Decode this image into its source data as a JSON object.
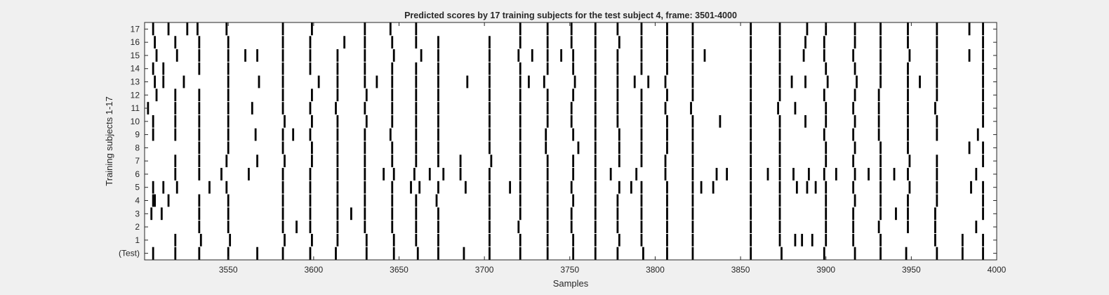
{
  "chart_data": {
    "type": "raster",
    "title": "Predicted scores by 17 training subjects for the test subject 4, frame: 3501-4000",
    "xlabel": "Samples",
    "ylabel": "Training subjects 1-17",
    "xlim": [
      3501,
      4000
    ],
    "xticks": [
      3550,
      3600,
      3650,
      3700,
      3750,
      3800,
      3850,
      3900,
      3950,
      4000
    ],
    "rows": [
      "(Test)",
      "1",
      "2",
      "3",
      "4",
      "5",
      "6",
      "7",
      "8",
      "9",
      "10",
      "11",
      "12",
      "13",
      "14",
      "15",
      "16",
      "17"
    ],
    "grid": false,
    "legend": "none",
    "colors": {
      "mark": "#000000",
      "axes_bg": "#ffffff",
      "figure_bg": "#f0f0f0",
      "axis": "#262626"
    },
    "series": [
      {
        "row": "(Test)",
        "x": [
          3506,
          3519,
          3533,
          3550,
          3567,
          3582,
          3598,
          3613,
          3631,
          3647,
          3661,
          3673,
          3688,
          3703,
          3721,
          3737,
          3752,
          3765,
          3778,
          3793,
          3807,
          3822,
          3856,
          3874,
          3899,
          3917,
          3932,
          3947,
          3965,
          3980,
          3992
        ]
      },
      {
        "row": "1",
        "x": [
          3519,
          3534,
          3551,
          3583,
          3599,
          3614,
          3631,
          3647,
          3660,
          3673,
          3703,
          3721,
          3737,
          3752,
          3765,
          3779,
          3792,
          3807,
          3822,
          3856,
          3873,
          3882,
          3886,
          3892,
          3900,
          3916,
          3932,
          3964,
          3980,
          3992
        ]
      },
      {
        "row": "2",
        "x": [
          3533,
          3550,
          3582,
          3590,
          3598,
          3614,
          3630,
          3646,
          3660,
          3673,
          3703,
          3720,
          3737,
          3751,
          3765,
          3778,
          3792,
          3807,
          3822,
          3856,
          3873,
          3900,
          3916,
          3931,
          3948,
          3964,
          3988
        ]
      },
      {
        "row": "3",
        "x": [
          3505,
          3511,
          3533,
          3550,
          3582,
          3598,
          3614,
          3622,
          3630,
          3646,
          3660,
          3673,
          3703,
          3721,
          3737,
          3751,
          3765,
          3778,
          3792,
          3807,
          3822,
          3856,
          3873,
          3900,
          3916,
          3932,
          3941,
          3948,
          3964,
          3992
        ]
      },
      {
        "row": "4",
        "x": [
          3506,
          3507,
          3515,
          3533,
          3550,
          3582,
          3598,
          3614,
          3630,
          3646,
          3660,
          3672,
          3703,
          3721,
          3737,
          3752,
          3765,
          3778,
          3792,
          3807,
          3822,
          3856,
          3873,
          3900,
          3917,
          3932,
          3948,
          3965,
          3992
        ]
      },
      {
        "row": "5",
        "x": [
          3506,
          3512,
          3520,
          3539,
          3549,
          3582,
          3598,
          3614,
          3630,
          3646,
          3657,
          3662,
          3673,
          3689,
          3703,
          3715,
          3721,
          3737,
          3751,
          3765,
          3779,
          3786,
          3792,
          3807,
          3822,
          3827,
          3834,
          3856,
          3873,
          3883,
          3889,
          3894,
          3900,
          3916,
          3932,
          3949,
          3965,
          3985,
          3992
        ]
      },
      {
        "row": "6",
        "x": [
          3519,
          3533,
          3546,
          3562,
          3582,
          3598,
          3614,
          3630,
          3641,
          3647,
          3659,
          3668,
          3676,
          3686,
          3703,
          3721,
          3737,
          3752,
          3765,
          3774,
          3789,
          3806,
          3822,
          3836,
          3842,
          3856,
          3866,
          3873,
          3881,
          3890,
          3899,
          3906,
          3917,
          3925,
          3932,
          3940,
          3948,
          3965,
          3988
        ]
      },
      {
        "row": "7",
        "x": [
          3519,
          3533,
          3549,
          3567,
          3583,
          3599,
          3614,
          3630,
          3646,
          3660,
          3673,
          3686,
          3704,
          3721,
          3737,
          3752,
          3765,
          3779,
          3792,
          3806,
          3822,
          3856,
          3873,
          3900,
          3916,
          3932,
          3949,
          3965,
          3992
        ]
      },
      {
        "row": "8",
        "x": [
          3533,
          3550,
          3582,
          3599,
          3614,
          3630,
          3646,
          3660,
          3673,
          3703,
          3721,
          3736,
          3755,
          3765,
          3779,
          3792,
          3807,
          3822,
          3856,
          3873,
          3900,
          3917,
          3932,
          3948,
          3984,
          3992
        ]
      },
      {
        "row": "9",
        "x": [
          3506,
          3519,
          3533,
          3550,
          3566,
          3582,
          3588,
          3598,
          3614,
          3630,
          3645,
          3660,
          3673,
          3703,
          3721,
          3736,
          3752,
          3765,
          3779,
          3792,
          3807,
          3822,
          3856,
          3873,
          3899,
          3916,
          3931,
          3948,
          3965,
          3989
        ]
      },
      {
        "row": "10",
        "x": [
          3506,
          3519,
          3533,
          3550,
          3583,
          3599,
          3614,
          3631,
          3646,
          3660,
          3673,
          3703,
          3721,
          3737,
          3751,
          3765,
          3778,
          3792,
          3807,
          3822,
          3838,
          3856,
          3873,
          3888,
          3900,
          3917,
          3931,
          3948,
          3965,
          3992
        ]
      },
      {
        "row": "11",
        "x": [
          3503,
          3519,
          3533,
          3550,
          3564,
          3582,
          3598,
          3613,
          3630,
          3646,
          3660,
          3673,
          3703,
          3721,
          3737,
          3751,
          3765,
          3778,
          3792,
          3806,
          3821,
          3856,
          3872,
          3882,
          3900,
          3916,
          3931,
          3948,
          3964,
          3992
        ]
      },
      {
        "row": "12",
        "x": [
          3508,
          3519,
          3533,
          3550,
          3582,
          3599,
          3614,
          3631,
          3646,
          3660,
          3673,
          3703,
          3721,
          3737,
          3752,
          3765,
          3778,
          3792,
          3807,
          3822,
          3856,
          3873,
          3899,
          3917,
          3931,
          3948,
          3965,
          3992
        ]
      },
      {
        "row": "13",
        "x": [
          3507,
          3512,
          3524,
          3550,
          3568,
          3582,
          3603,
          3614,
          3630,
          3637,
          3646,
          3660,
          3673,
          3690,
          3703,
          3721,
          3726,
          3735,
          3753,
          3765,
          3778,
          3788,
          3796,
          3806,
          3822,
          3856,
          3873,
          3880,
          3888,
          3901,
          3918,
          3932,
          3948,
          3955,
          3965,
          3992
        ]
      },
      {
        "row": "14",
        "x": [
          3506,
          3512,
          3533,
          3550,
          3582,
          3598,
          3614,
          3630,
          3646,
          3660,
          3673,
          3703,
          3721,
          3737,
          3752,
          3765,
          3778,
          3792,
          3807,
          3822,
          3856,
          3873,
          3900,
          3917,
          3932,
          3948,
          3965,
          3992
        ]
      },
      {
        "row": "15",
        "x": [
          3508,
          3520,
          3533,
          3550,
          3560,
          3567,
          3582,
          3598,
          3614,
          3630,
          3647,
          3663,
          3673,
          3703,
          3720,
          3728,
          3737,
          3745,
          3752,
          3765,
          3778,
          3792,
          3807,
          3822,
          3829,
          3856,
          3873,
          3887,
          3899,
          3916,
          3932,
          3949,
          3965,
          3984,
          3992
        ]
      },
      {
        "row": "16",
        "x": [
          3507,
          3519,
          3533,
          3550,
          3582,
          3598,
          3618,
          3630,
          3646,
          3660,
          3673,
          3703,
          3721,
          3737,
          3751,
          3765,
          3779,
          3792,
          3807,
          3822,
          3856,
          3873,
          3888,
          3899,
          3917,
          3932,
          3948,
          3965,
          3992
        ]
      },
      {
        "row": "17",
        "x": [
          3506,
          3515,
          3526,
          3532,
          3549,
          3582,
          3599,
          3630,
          3645,
          3660,
          3721,
          3737,
          3751,
          3765,
          3778,
          3792,
          3807,
          3822,
          3856,
          3873,
          3889,
          3900,
          3917,
          3932,
          3948,
          3965,
          3984,
          3992
        ]
      }
    ]
  }
}
